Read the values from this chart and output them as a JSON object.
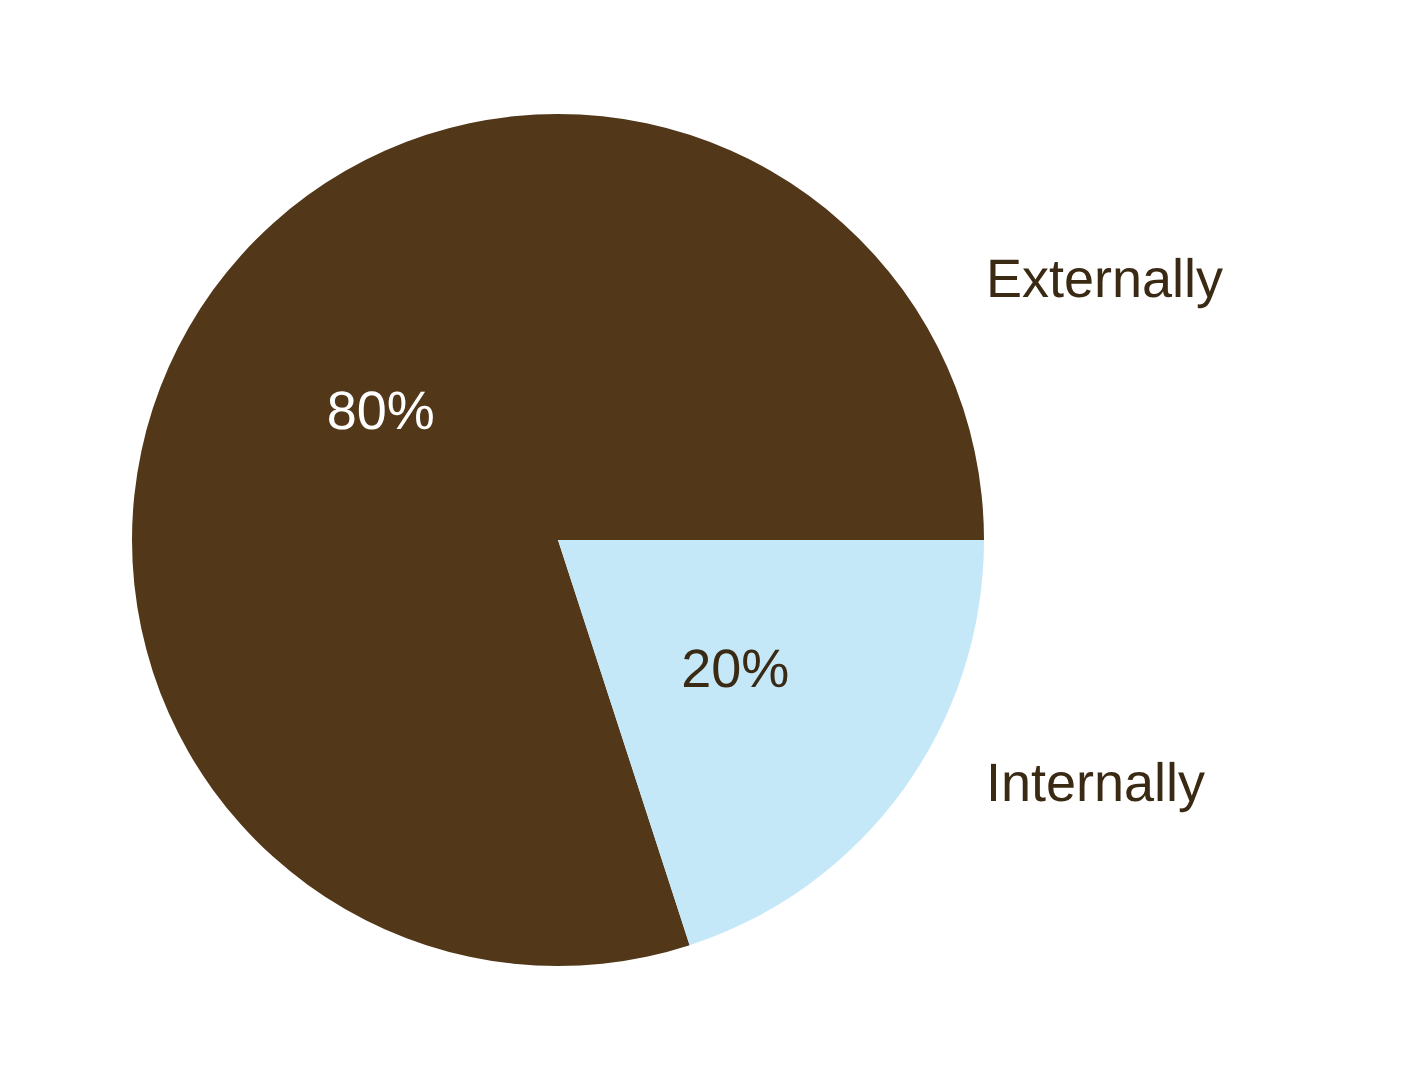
{
  "chart_data": {
    "type": "pie",
    "categories": [
      "Externally",
      "Internally"
    ],
    "values": [
      80,
      20
    ],
    "colors": [
      "#523719",
      "#c5e8f8"
    ],
    "value_labels": [
      "80%",
      "20%"
    ],
    "legend": false
  }
}
